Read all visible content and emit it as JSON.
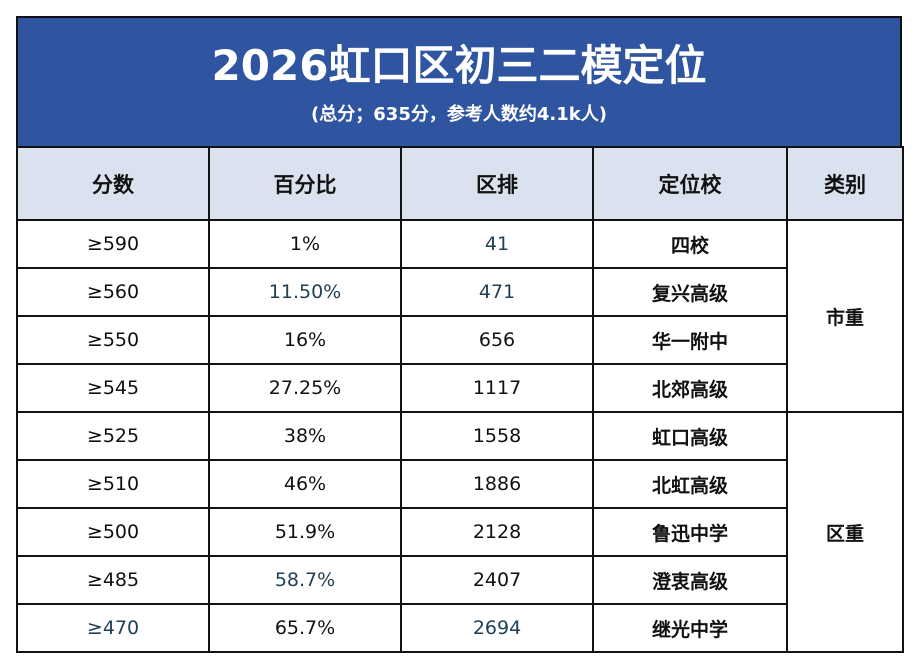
{
  "title": "2026虹口区初三二模定位",
  "subtitle": "(总分；635分，参考人数约4.1k人)",
  "colors": {
    "title_bg": "#2F54A0",
    "header_bg": "#DAE2F0"
  },
  "headers": [
    "分数",
    "百分比",
    "区排",
    "定位校",
    "类别"
  ],
  "rows": [
    {
      "score": "≥590",
      "percent": "1%",
      "rank": "41",
      "school": "四校"
    },
    {
      "score": "≥560",
      "percent": "11.50%",
      "rank": "471",
      "school": "复兴高级"
    },
    {
      "score": "≥550",
      "percent": "16%",
      "rank": "656",
      "school": "华一附中"
    },
    {
      "score": "≥545",
      "percent": "27.25%",
      "rank": "1117",
      "school": "北郊高级"
    },
    {
      "score": "≥525",
      "percent": "38%",
      "rank": "1558",
      "school": "虹口高级"
    },
    {
      "score": "≥510",
      "percent": "46%",
      "rank": "1886",
      "school": "北虹高级"
    },
    {
      "score": "≥500",
      "percent": "51.9%",
      "rank": "2128",
      "school": "鲁迅中学"
    },
    {
      "score": "≥485",
      "percent": "58.7%",
      "rank": "2407",
      "school": "澄衷高级"
    },
    {
      "score": "≥470",
      "percent": "65.7%",
      "rank": "2694",
      "school": "继光中学"
    }
  ],
  "categories": [
    "市重",
    "区重"
  ]
}
